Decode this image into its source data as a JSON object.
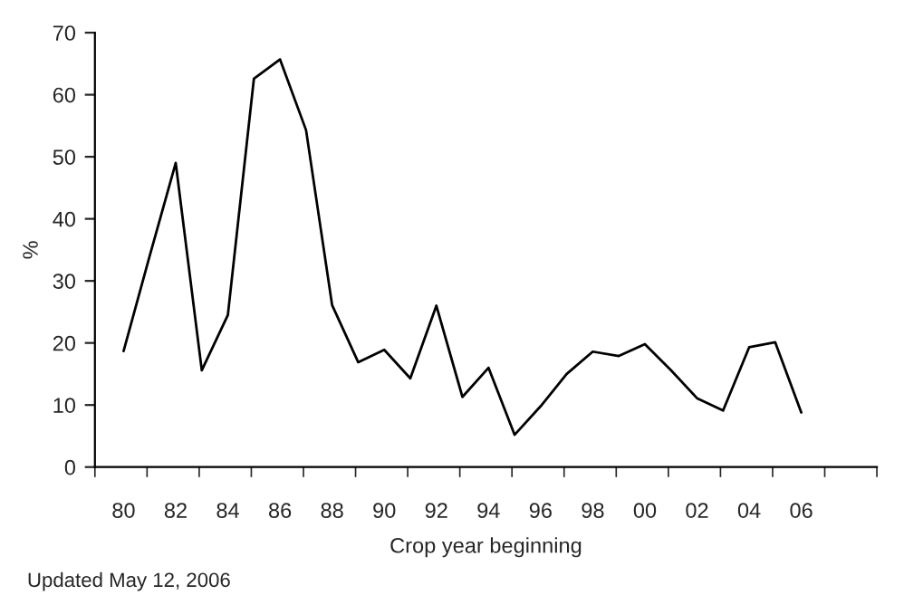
{
  "chart_data": {
    "type": "line",
    "xlabel": "Crop year beginning",
    "ylabel": "%",
    "x": [
      1980,
      1981,
      1982,
      1983,
      1984,
      1985,
      1986,
      1987,
      1988,
      1989,
      1990,
      1991,
      1992,
      1993,
      1994,
      1995,
      1996,
      1997,
      1998,
      1999,
      2000,
      2001,
      2002,
      2003,
      2004,
      2005,
      2006
    ],
    "series": [
      {
        "color": "#000000",
        "values": [
          18.7,
          34,
          49,
          15.6,
          24.5,
          62.6,
          65.7,
          54.3,
          26.1,
          16.9,
          18.9,
          14.3,
          26,
          11.3,
          16,
          5.2,
          9.8,
          15,
          18.6,
          17.9,
          19.8,
          15.6,
          11.1,
          9.1,
          19.3,
          20.1,
          8.8
        ]
      }
    ],
    "xlim": [
      1978.9,
      2008.9
    ],
    "xticks": [
      {
        "value": 1980,
        "label": "80"
      },
      {
        "value": 1982,
        "label": "82"
      },
      {
        "value": 1984,
        "label": "84"
      },
      {
        "value": 1986,
        "label": "86"
      },
      {
        "value": 1988,
        "label": "88"
      },
      {
        "value": 1990,
        "label": "90"
      },
      {
        "value": 1992,
        "label": "92"
      },
      {
        "value": 1994,
        "label": "94"
      },
      {
        "value": 1996,
        "label": "96"
      },
      {
        "value": 1998,
        "label": "98"
      },
      {
        "value": 2000,
        "label": "00"
      },
      {
        "value": 2002,
        "label": "02"
      },
      {
        "value": 2004,
        "label": "04"
      },
      {
        "value": 2006,
        "label": "06"
      },
      {
        "value": 1978.9,
        "label": null
      },
      {
        "value": 1980.9,
        "label": null
      },
      {
        "value": 1982.9,
        "label": null
      },
      {
        "value": 1984.9,
        "label": null
      },
      {
        "value": 1986.9,
        "label": null
      },
      {
        "value": 1988.9,
        "label": null
      },
      {
        "value": 1990.9,
        "label": null
      },
      {
        "value": 1992.9,
        "label": null
      },
      {
        "value": 1994.9,
        "label": null
      },
      {
        "value": 1996.9,
        "label": null
      },
      {
        "value": 1998.9,
        "label": null
      },
      {
        "value": 2000.9,
        "label": null
      },
      {
        "value": 2002.9,
        "label": null
      },
      {
        "value": 2004.9,
        "label": null
      },
      {
        "value": 2006.9,
        "label": null
      },
      {
        "value": 2008.9,
        "label": null
      }
    ],
    "ylim": [
      0,
      70
    ],
    "yticks": [
      0,
      10,
      20,
      30,
      40,
      50,
      60,
      70
    ],
    "grid": false,
    "marker": "none",
    "line_style": "solid",
    "annotations": [
      "Updated May 12, 2006"
    ]
  }
}
